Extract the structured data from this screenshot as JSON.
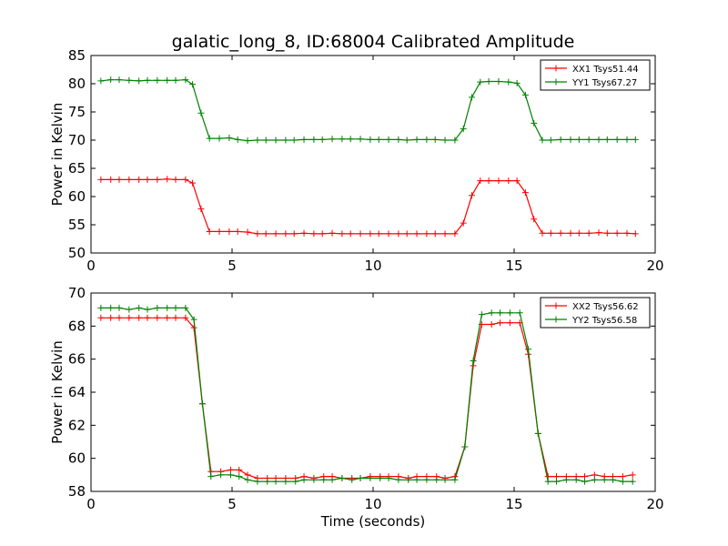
{
  "title": "galatic_long_8, ID:68004 Calibrated Amplitude",
  "chart_data": [
    {
      "type": "line",
      "title": "galatic_long_8, ID:68004 Calibrated Amplitude",
      "xlabel": "",
      "ylabel": "Power in Kelvin",
      "xlim": [
        0,
        20
      ],
      "ylim": [
        50,
        85
      ],
      "xticks": [
        0,
        5,
        10,
        15,
        20
      ],
      "yticks": [
        50,
        55,
        60,
        65,
        70,
        75,
        80,
        85
      ],
      "grid": false,
      "legend_position": "top-right",
      "series": [
        {
          "name": "XX1 Tsys51.44",
          "color": "#ff0000",
          "x": [
            0.35,
            0.7,
            1.0,
            1.35,
            1.7,
            2.0,
            2.35,
            2.7,
            3.0,
            3.35,
            3.6,
            3.9,
            4.2,
            4.55,
            4.9,
            5.2,
            5.55,
            5.9,
            6.2,
            6.55,
            6.9,
            7.2,
            7.55,
            7.9,
            8.2,
            8.55,
            8.9,
            9.2,
            9.55,
            9.9,
            10.2,
            10.55,
            10.9,
            11.2,
            11.55,
            11.9,
            12.2,
            12.55,
            12.9,
            13.2,
            13.5,
            13.8,
            14.1,
            14.45,
            14.8,
            15.1,
            15.4,
            15.7,
            16.0,
            16.3,
            16.65,
            17.0,
            17.3,
            17.65,
            18.0,
            18.3,
            18.65,
            19.0,
            19.3
          ],
          "values": [
            63.0,
            63.0,
            63.0,
            63.0,
            63.0,
            63.0,
            63.0,
            63.1,
            63.0,
            63.0,
            62.4,
            57.8,
            53.8,
            53.8,
            53.8,
            53.8,
            53.7,
            53.4,
            53.4,
            53.4,
            53.4,
            53.4,
            53.5,
            53.4,
            53.4,
            53.5,
            53.4,
            53.4,
            53.4,
            53.4,
            53.4,
            53.4,
            53.4,
            53.4,
            53.4,
            53.4,
            53.4,
            53.4,
            53.4,
            55.3,
            60.2,
            62.8,
            62.8,
            62.8,
            62.8,
            62.8,
            60.7,
            56.0,
            53.5,
            53.5,
            53.5,
            53.5,
            53.5,
            53.5,
            53.6,
            53.5,
            53.5,
            53.5,
            53.4
          ]
        },
        {
          "name": "YY1 Tsys67.27",
          "color": "#008000",
          "x": [
            0.35,
            0.7,
            1.0,
            1.35,
            1.7,
            2.0,
            2.35,
            2.7,
            3.0,
            3.35,
            3.6,
            3.9,
            4.2,
            4.55,
            4.9,
            5.2,
            5.55,
            5.9,
            6.2,
            6.55,
            6.9,
            7.2,
            7.55,
            7.9,
            8.2,
            8.55,
            8.9,
            9.2,
            9.55,
            9.9,
            10.2,
            10.55,
            10.9,
            11.2,
            11.55,
            11.9,
            12.2,
            12.55,
            12.9,
            13.2,
            13.5,
            13.8,
            14.1,
            14.45,
            14.8,
            15.1,
            15.4,
            15.7,
            16.0,
            16.3,
            16.65,
            17.0,
            17.3,
            17.65,
            18.0,
            18.3,
            18.65,
            19.0,
            19.3
          ],
          "values": [
            80.5,
            80.7,
            80.7,
            80.6,
            80.5,
            80.6,
            80.6,
            80.6,
            80.6,
            80.7,
            79.9,
            74.8,
            70.3,
            70.3,
            70.4,
            70.1,
            69.9,
            70.0,
            70.0,
            70.0,
            70.0,
            70.0,
            70.1,
            70.1,
            70.1,
            70.2,
            70.2,
            70.2,
            70.2,
            70.1,
            70.1,
            70.1,
            70.1,
            70.0,
            70.1,
            70.1,
            70.1,
            70.0,
            70.0,
            72.0,
            77.6,
            80.3,
            80.4,
            80.4,
            80.3,
            80.1,
            78.0,
            73.0,
            70.0,
            70.0,
            70.1,
            70.1,
            70.1,
            70.1,
            70.1,
            70.1,
            70.1,
            70.1,
            70.1
          ]
        }
      ]
    },
    {
      "type": "line",
      "title": "",
      "xlabel": "Time (seconds)",
      "ylabel": "Power in Kelvin",
      "xlim": [
        0,
        20
      ],
      "ylim": [
        58,
        70
      ],
      "xticks": [
        0,
        5,
        10,
        15,
        20
      ],
      "yticks": [
        58,
        60,
        62,
        64,
        66,
        68,
        70
      ],
      "grid": false,
      "legend_position": "top-right",
      "series": [
        {
          "name": "XX2 Tsys56.62",
          "color": "#ff0000",
          "x": [
            0.35,
            0.7,
            1.0,
            1.35,
            1.7,
            2.0,
            2.35,
            2.7,
            3.0,
            3.35,
            3.65,
            3.95,
            4.25,
            4.6,
            4.95,
            5.25,
            5.55,
            5.9,
            6.25,
            6.55,
            6.9,
            7.25,
            7.55,
            7.9,
            8.25,
            8.55,
            8.9,
            9.25,
            9.55,
            9.9,
            10.25,
            10.55,
            10.9,
            11.25,
            11.55,
            11.9,
            12.25,
            12.55,
            12.9,
            13.25,
            13.55,
            13.85,
            14.2,
            14.5,
            14.85,
            15.2,
            15.5,
            15.85,
            16.2,
            16.5,
            16.85,
            17.2,
            17.5,
            17.85,
            18.2,
            18.5,
            18.85,
            19.2
          ],
          "values": [
            68.5,
            68.5,
            68.5,
            68.5,
            68.5,
            68.5,
            68.5,
            68.5,
            68.5,
            68.5,
            67.9,
            63.3,
            59.2,
            59.2,
            59.3,
            59.3,
            59.0,
            58.8,
            58.8,
            58.8,
            58.8,
            58.8,
            58.9,
            58.8,
            58.9,
            58.9,
            58.8,
            58.8,
            58.8,
            58.9,
            58.9,
            58.9,
            58.9,
            58.8,
            58.9,
            58.9,
            58.9,
            58.8,
            58.9,
            60.7,
            65.6,
            68.1,
            68.1,
            68.2,
            68.2,
            68.2,
            66.3,
            61.5,
            58.9,
            58.9,
            58.9,
            58.9,
            58.9,
            59.0,
            58.9,
            58.9,
            58.9,
            59.0
          ]
        },
        {
          "name": "YY2 Tsys56.58",
          "color": "#008000",
          "x": [
            0.35,
            0.7,
            1.0,
            1.35,
            1.7,
            2.0,
            2.35,
            2.7,
            3.0,
            3.35,
            3.65,
            3.95,
            4.25,
            4.6,
            4.95,
            5.25,
            5.55,
            5.9,
            6.25,
            6.55,
            6.9,
            7.25,
            7.55,
            7.9,
            8.25,
            8.55,
            8.9,
            9.25,
            9.55,
            9.9,
            10.25,
            10.55,
            10.9,
            11.25,
            11.55,
            11.9,
            12.25,
            12.55,
            12.9,
            13.25,
            13.55,
            13.85,
            14.2,
            14.5,
            14.85,
            15.2,
            15.5,
            15.85,
            16.2,
            16.5,
            16.85,
            17.2,
            17.5,
            17.85,
            18.2,
            18.5,
            18.85,
            19.2
          ],
          "values": [
            69.1,
            69.1,
            69.1,
            69.0,
            69.1,
            69.0,
            69.1,
            69.1,
            69.1,
            69.1,
            68.4,
            63.3,
            58.9,
            59.0,
            59.0,
            58.9,
            58.7,
            58.6,
            58.6,
            58.6,
            58.6,
            58.6,
            58.7,
            58.7,
            58.7,
            58.7,
            58.8,
            58.7,
            58.8,
            58.8,
            58.8,
            58.8,
            58.7,
            58.7,
            58.7,
            58.7,
            58.7,
            58.7,
            58.7,
            60.7,
            65.9,
            68.7,
            68.8,
            68.8,
            68.8,
            68.8,
            66.6,
            61.5,
            58.6,
            58.6,
            58.7,
            58.7,
            58.6,
            58.7,
            58.7,
            58.7,
            58.6,
            58.6
          ]
        }
      ]
    }
  ]
}
